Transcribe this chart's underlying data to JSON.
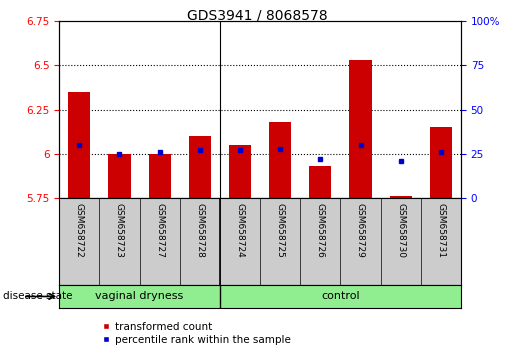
{
  "title": "GDS3941 / 8068578",
  "samples": [
    "GSM658722",
    "GSM658723",
    "GSM658727",
    "GSM658728",
    "GSM658724",
    "GSM658725",
    "GSM658726",
    "GSM658729",
    "GSM658730",
    "GSM658731"
  ],
  "red_values": [
    6.35,
    6.0,
    6.0,
    6.1,
    6.05,
    6.18,
    5.93,
    6.53,
    5.76,
    6.15
  ],
  "blue_values": [
    30,
    25,
    26,
    27,
    27,
    28,
    22,
    30,
    21,
    26
  ],
  "y_min": 5.75,
  "y_max": 6.75,
  "y_ticks": [
    5.75,
    6.0,
    6.25,
    6.5,
    6.75
  ],
  "y_tick_labels": [
    "5.75",
    "6",
    "6.25",
    "6.5",
    "6.75"
  ],
  "y2_ticks": [
    0,
    25,
    50,
    75,
    100
  ],
  "y2_tick_labels": [
    "0",
    "25",
    "50",
    "75",
    "100%"
  ],
  "grid_lines": [
    6.0,
    6.25,
    6.5
  ],
  "group_sep": 3.5,
  "group1_label": "vaginal dryness",
  "group2_label": "control",
  "group_color": "#90EE90",
  "disease_state_label": "disease state",
  "legend_items": [
    {
      "label": "transformed count",
      "color": "#CC0000"
    },
    {
      "label": "percentile rank within the sample",
      "color": "#0000CC"
    }
  ],
  "bar_color": "#CC0000",
  "dot_color": "#0000CC",
  "bg_color": "#FFFFFF",
  "label_bg_color": "#CCCCCC",
  "title_fontsize": 10,
  "label_fontsize": 6.5,
  "tick_fontsize": 7.5,
  "legend_fontsize": 7.5
}
